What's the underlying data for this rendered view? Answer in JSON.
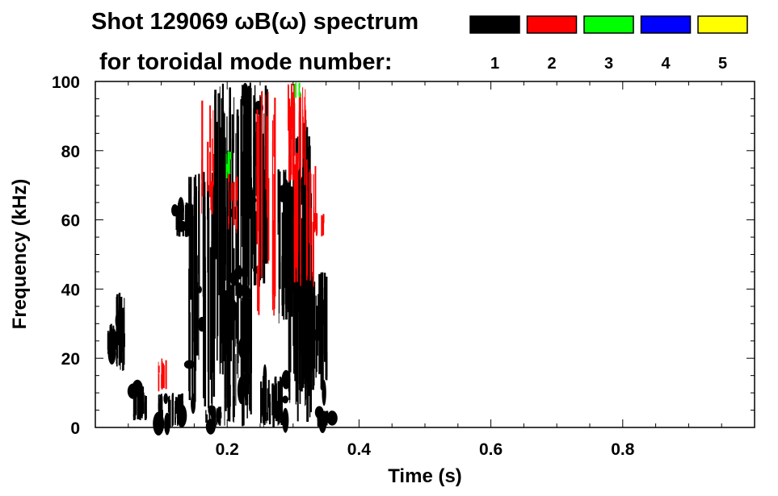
{
  "chart_data": {
    "type": "heatmap",
    "title": "Shot 129069 ωB(ω) spectrum",
    "subtitle": "for toroidal mode number:",
    "xlabel": "Time (s)",
    "ylabel": "Frequency (kHz)",
    "xlim": [
      0,
      1.0
    ],
    "ylim": [
      0,
      100
    ],
    "x_ticks": [
      0.2,
      0.4,
      0.6,
      0.8
    ],
    "x_tick_labels": [
      "0.2",
      "0.4",
      "0.6",
      "0.8"
    ],
    "y_ticks": [
      0,
      20,
      40,
      60,
      80,
      100
    ],
    "y_tick_labels": [
      "0",
      "20",
      "40",
      "60",
      "80",
      "100"
    ],
    "legend": {
      "placement": "top-right",
      "entries": [
        {
          "label": "1",
          "color": "#000000"
        },
        {
          "label": "2",
          "color": "#ff0000"
        },
        {
          "label": "3",
          "color": "#00ff00"
        },
        {
          "label": "4",
          "color": "#0000ff"
        },
        {
          "label": "5",
          "color": "#ffff00"
        }
      ]
    },
    "regions": [
      {
        "mode": "1",
        "t": [
          0.015,
          0.03
        ],
        "f": [
          20,
          30
        ]
      },
      {
        "mode": "1",
        "t": [
          0.03,
          0.045
        ],
        "f": [
          15,
          40
        ]
      },
      {
        "mode": "1",
        "t": [
          0.055,
          0.075
        ],
        "f": [
          2,
          12
        ]
      },
      {
        "mode": "1",
        "t": [
          0.095,
          0.135
        ],
        "f": [
          0,
          10
        ]
      },
      {
        "mode": "1",
        "t": [
          0.12,
          0.145
        ],
        "f": [
          55,
          65
        ]
      },
      {
        "mode": "1",
        "t": [
          0.14,
          0.18
        ],
        "f": [
          5,
          75
        ]
      },
      {
        "mode": "1",
        "t": [
          0.165,
          0.19
        ],
        "f": [
          0,
          6
        ]
      },
      {
        "mode": "1",
        "t": [
          0.18,
          0.235
        ],
        "f": [
          15,
          100
        ]
      },
      {
        "mode": "1",
        "t": [
          0.195,
          0.235
        ],
        "f": [
          0,
          40
        ]
      },
      {
        "mode": "1",
        "t": [
          0.22,
          0.26
        ],
        "f": [
          40,
          100
        ]
      },
      {
        "mode": "1",
        "t": [
          0.25,
          0.29
        ],
        "f": [
          0,
          15
        ]
      },
      {
        "mode": "1",
        "t": [
          0.275,
          0.31
        ],
        "f": [
          30,
          75
        ]
      },
      {
        "mode": "1",
        "t": [
          0.29,
          0.325
        ],
        "f": [
          0,
          90
        ]
      },
      {
        "mode": "1",
        "t": [
          0.325,
          0.35
        ],
        "f": [
          10,
          45
        ]
      },
      {
        "mode": "1",
        "t": [
          0.335,
          0.36
        ],
        "f": [
          0,
          5
        ]
      },
      {
        "mode": "2",
        "t": [
          0.095,
          0.11
        ],
        "f": [
          10,
          20
        ]
      },
      {
        "mode": "2",
        "t": [
          0.16,
          0.18
        ],
        "f": [
          60,
          100
        ]
      },
      {
        "mode": "2",
        "t": [
          0.2,
          0.215
        ],
        "f": [
          55,
          75
        ]
      },
      {
        "mode": "2",
        "t": [
          0.24,
          0.275
        ],
        "f": [
          30,
          100
        ]
      },
      {
        "mode": "2",
        "t": [
          0.285,
          0.32
        ],
        "f": [
          70,
          100
        ]
      },
      {
        "mode": "2",
        "t": [
          0.3,
          0.335
        ],
        "f": [
          40,
          80
        ]
      },
      {
        "mode": "2",
        "t": [
          0.33,
          0.345
        ],
        "f": [
          55,
          62
        ]
      },
      {
        "mode": "3",
        "t": [
          0.195,
          0.205
        ],
        "f": [
          72,
          80
        ]
      },
      {
        "mode": "3",
        "t": [
          0.3,
          0.31
        ],
        "f": [
          95,
          100
        ]
      }
    ]
  }
}
